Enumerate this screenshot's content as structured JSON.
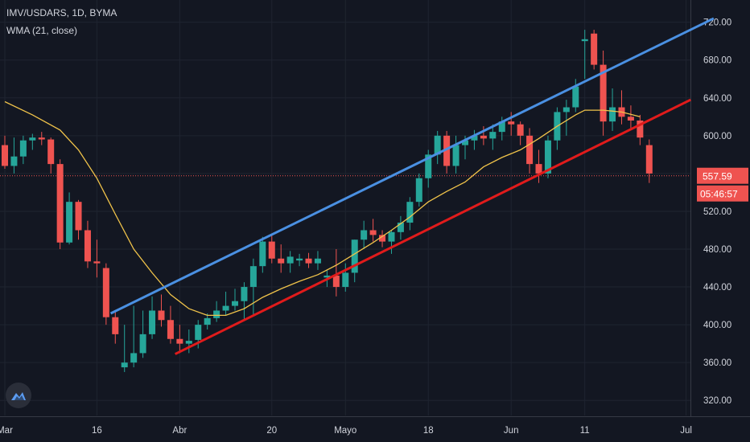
{
  "header": {
    "symbol": "IMV/USDARS, 1D, BYMA",
    "indicator": "WMA (21, close)"
  },
  "colors": {
    "background": "#131722",
    "up": "#26a69a",
    "down": "#ef5350",
    "wma": "#f0c34a",
    "upper_trendline": "#4a90e2",
    "lower_trendline": "#e01b1b",
    "grid": "#1f2430",
    "axis_text": "#d1d4dc"
  },
  "price_label": {
    "value": "557.59"
  },
  "countdown_label": {
    "value": "05:46:57"
  },
  "logo_icon": "tradingview-cloud-icon",
  "chart_data": {
    "type": "candlestick",
    "y_ticks": [
      "720.00",
      "680.00",
      "640.00",
      "600.00",
      "560.00",
      "520.00",
      "480.00",
      "440.00",
      "400.00",
      "360.00",
      "320.00"
    ],
    "ylim": [
      310,
      735
    ],
    "x_labels": [
      {
        "label": "Mar",
        "index": 0
      },
      {
        "label": "16",
        "index": 10
      },
      {
        "label": "Abr",
        "index": 19
      },
      {
        "label": "20",
        "index": 29
      },
      {
        "label": "Mayo",
        "index": 37
      },
      {
        "label": "18",
        "index": 46
      },
      {
        "label": "Jun",
        "index": 55
      },
      {
        "label": "11",
        "index": 63
      },
      {
        "label": "Jul",
        "index": 74
      }
    ],
    "x_range": [
      0,
      75
    ],
    "ohlc": [
      [
        590,
        600,
        565,
        568
      ],
      [
        568,
        598,
        560,
        578
      ],
      [
        578,
        600,
        570,
        595
      ],
      [
        595,
        602,
        585,
        598
      ],
      [
        598,
        604,
        590,
        596
      ],
      [
        596,
        598,
        560,
        570
      ],
      [
        570,
        575,
        480,
        487
      ],
      [
        487,
        540,
        485,
        530
      ],
      [
        530,
        532,
        490,
        500
      ],
      [
        500,
        510,
        460,
        467
      ],
      [
        467,
        490,
        450,
        465
      ],
      [
        460,
        465,
        400,
        408
      ],
      [
        408,
        415,
        380,
        390
      ],
      [
        355,
        400,
        350,
        360
      ],
      [
        360,
        420,
        355,
        370
      ],
      [
        370,
        415,
        365,
        390
      ],
      [
        390,
        430,
        385,
        415
      ],
      [
        415,
        432,
        398,
        405
      ],
      [
        405,
        420,
        380,
        385
      ],
      [
        385,
        400,
        370,
        380
      ],
      [
        380,
        395,
        370,
        383
      ],
      [
        384,
        405,
        375,
        400
      ],
      [
        400,
        412,
        395,
        407
      ],
      [
        407,
        425,
        403,
        415
      ],
      [
        415,
        435,
        410,
        420
      ],
      [
        420,
        438,
        415,
        425
      ],
      [
        425,
        445,
        405,
        440
      ],
      [
        440,
        470,
        410,
        462
      ],
      [
        462,
        493,
        455,
        488
      ],
      [
        488,
        495,
        465,
        470
      ],
      [
        470,
        485,
        455,
        465
      ],
      [
        465,
        478,
        455,
        472
      ],
      [
        468,
        475,
        462,
        470
      ],
      [
        470,
        476,
        460,
        465
      ],
      [
        465,
        478,
        458,
        470
      ],
      [
        450,
        458,
        440,
        452
      ],
      [
        452,
        480,
        430,
        440
      ],
      [
        440,
        465,
        435,
        455
      ],
      [
        455,
        490,
        445,
        490
      ],
      [
        490,
        510,
        480,
        500
      ],
      [
        500,
        512,
        488,
        495
      ],
      [
        495,
        500,
        482,
        488
      ],
      [
        488,
        500,
        475,
        498
      ],
      [
        498,
        515,
        490,
        508
      ],
      [
        508,
        535,
        500,
        530
      ],
      [
        530,
        560,
        525,
        555
      ],
      [
        555,
        585,
        545,
        580
      ],
      [
        580,
        605,
        570,
        600
      ],
      [
        600,
        605,
        560,
        568
      ],
      [
        568,
        600,
        560,
        590
      ],
      [
        590,
        600,
        575,
        595
      ],
      [
        595,
        606,
        585,
        600
      ],
      [
        600,
        610,
        590,
        597
      ],
      [
        597,
        612,
        585,
        604
      ],
      [
        604,
        620,
        595,
        615
      ],
      [
        615,
        625,
        600,
        612
      ],
      [
        612,
        615,
        590,
        600
      ],
      [
        600,
        608,
        560,
        570
      ],
      [
        570,
        585,
        550,
        560
      ],
      [
        560,
        600,
        555,
        595
      ],
      [
        595,
        630,
        585,
        625
      ],
      [
        625,
        638,
        600,
        630
      ],
      [
        630,
        660,
        625,
        652
      ],
      [
        700,
        712,
        660,
        702
      ],
      [
        708,
        712,
        670,
        675
      ],
      [
        675,
        690,
        600,
        615
      ],
      [
        615,
        650,
        605,
        630
      ],
      [
        630,
        648,
        612,
        620
      ],
      [
        620,
        632,
        608,
        616
      ],
      [
        616,
        622,
        590,
        598
      ],
      [
        590,
        596,
        550,
        560
      ]
    ],
    "wma": [
      [
        0,
        636
      ],
      [
        3,
        622
      ],
      [
        6,
        606
      ],
      [
        8,
        585
      ],
      [
        10,
        555
      ],
      [
        12,
        517
      ],
      [
        14,
        480
      ],
      [
        16,
        455
      ],
      [
        18,
        432
      ],
      [
        20,
        417
      ],
      [
        22,
        410
      ],
      [
        24,
        410
      ],
      [
        26,
        417
      ],
      [
        28,
        429
      ],
      [
        30,
        438
      ],
      [
        32,
        446
      ],
      [
        34,
        453
      ],
      [
        36,
        463
      ],
      [
        38,
        475
      ],
      [
        40,
        487
      ],
      [
        42,
        500
      ],
      [
        44,
        514
      ],
      [
        46,
        530
      ],
      [
        48,
        541
      ],
      [
        50,
        551
      ],
      [
        52,
        567
      ],
      [
        54,
        577
      ],
      [
        56,
        585
      ],
      [
        58,
        597
      ],
      [
        60,
        610
      ],
      [
        62,
        622
      ],
      [
        63,
        627
      ],
      [
        65,
        627
      ],
      [
        67,
        625
      ],
      [
        69,
        620
      ]
    ],
    "upper_trendline": [
      [
        11.5,
        412
      ],
      [
        77,
        724
      ]
    ],
    "lower_trendline": [
      [
        18.5,
        369
      ],
      [
        74.5,
        638
      ]
    ]
  }
}
